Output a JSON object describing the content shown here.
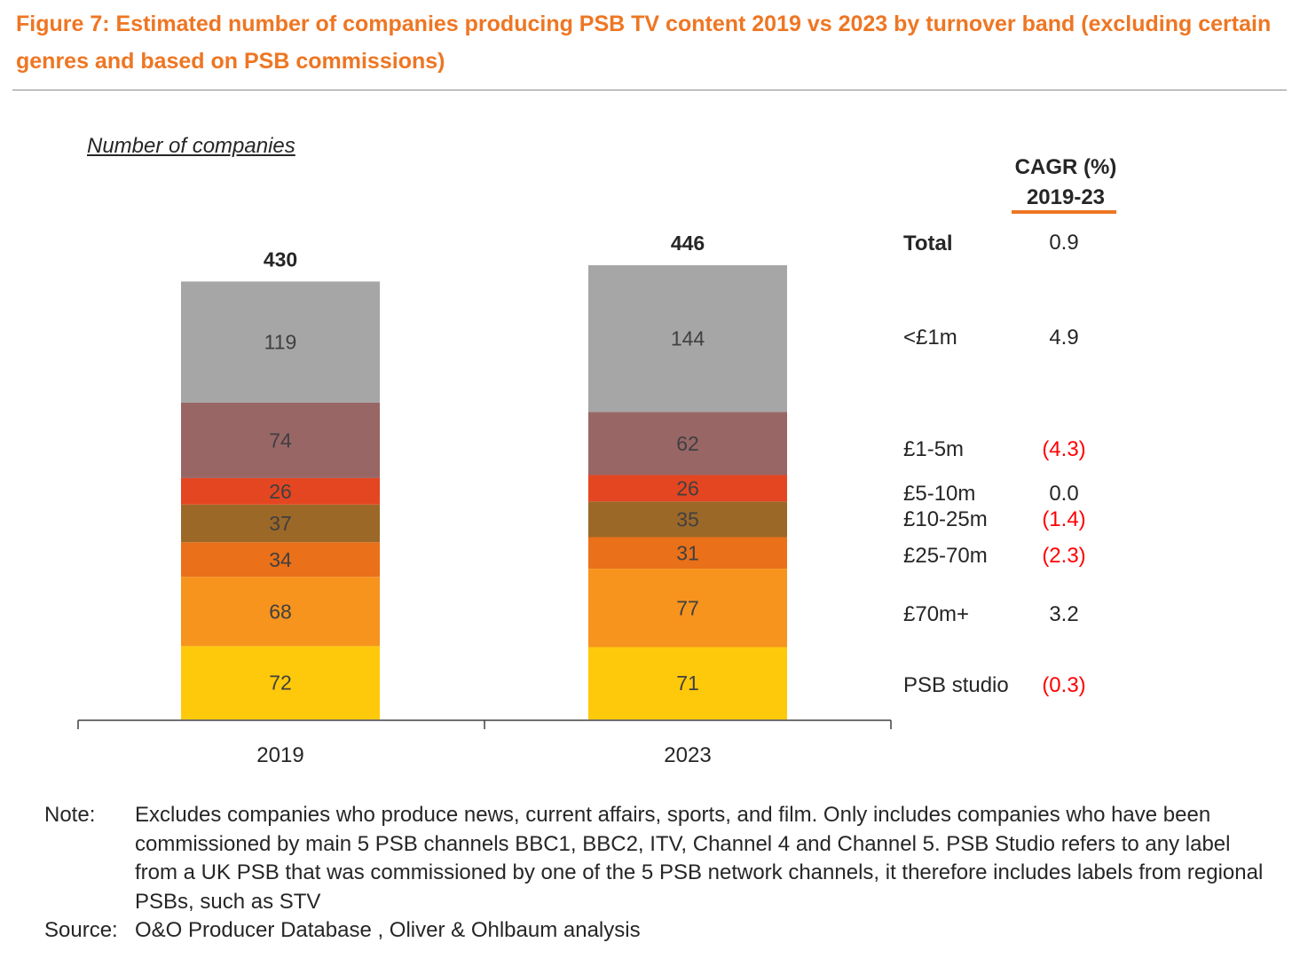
{
  "figure": {
    "title": "Figure 7: Estimated number of companies producing PSB TV content 2019 vs 2023 by turnover band (excluding certain genres and based on PSB commissions)"
  },
  "chart_data": {
    "type": "bar",
    "stacked": true,
    "ylabel": "Number of companies",
    "categories": [
      "2019",
      "2023"
    ],
    "totals": [
      430,
      446
    ],
    "series": [
      {
        "name": "PSB studio",
        "values": [
          72,
          71
        ],
        "color": "#ffc90b",
        "cagr": "(0.3)",
        "negative": true
      },
      {
        "name": "£70m+",
        "values": [
          68,
          77
        ],
        "color": "#f7941d",
        "cagr": "3.2",
        "negative": false
      },
      {
        "name": "£25-70m",
        "values": [
          34,
          31
        ],
        "color": "#ea7019",
        "cagr": "(2.3)",
        "negative": true
      },
      {
        "name": "£10-25m",
        "values": [
          37,
          35
        ],
        "color": "#9c6828",
        "cagr": "(1.4)",
        "negative": true
      },
      {
        "name": "£5-10m",
        "values": [
          26,
          26
        ],
        "color": "#e44621",
        "cagr": "0.0",
        "negative": false
      },
      {
        "name": "£1-5m",
        "values": [
          74,
          62
        ],
        "color": "#996666",
        "cagr": "(4.3)",
        "negative": true
      },
      {
        "name": "<£1m",
        "values": [
          119,
          144
        ],
        "color": "#a6a6a6",
        "cagr": "4.9",
        "negative": false
      }
    ],
    "total_row": {
      "name": "Total",
      "cagr": "0.9"
    },
    "cagr_header": [
      "CAGR (%)",
      "2019-23"
    ],
    "accent_color": "#ee7623",
    "negative_color": "#ff0000",
    "grid": false
  },
  "notes": {
    "note_label": "Note:",
    "note_text": "Excludes companies who produce news, current affairs, sports, and film. Only includes companies who have been commissioned by main 5 PSB channels BBC1, BBC2, ITV, Channel 4 and Channel 5. PSB Studio refers to any label from a UK PSB that was commissioned by one of the 5 PSB network channels, it therefore includes labels from regional PSBs, such as STV",
    "source_label": "Source:",
    "source_text": "O&O Producer Database , Oliver & Ohlbaum analysis"
  }
}
